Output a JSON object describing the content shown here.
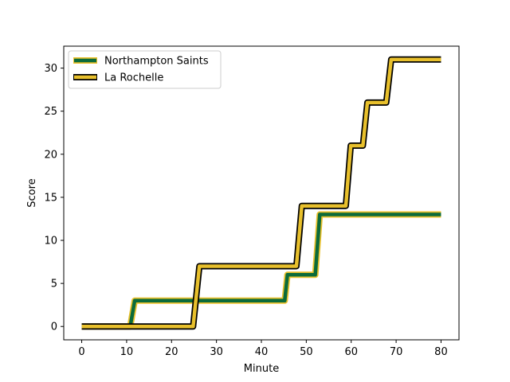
{
  "chart_data": {
    "type": "line",
    "title": "",
    "xlabel": "Minute",
    "ylabel": "Score",
    "xlim": [
      -4,
      84
    ],
    "ylim": [
      -1.55,
      32.55
    ],
    "xticks": [
      0,
      10,
      20,
      30,
      40,
      50,
      60,
      70,
      80
    ],
    "yticks": [
      0,
      5,
      10,
      15,
      20,
      25,
      30
    ],
    "grid": false,
    "legend_position": "upper-left",
    "series": [
      {
        "name": "Northampton Saints",
        "color": "#0b6b3a",
        "edge_color": "#e8c02c",
        "x": [
          0,
          10.8,
          11.8,
          45.2,
          45.8,
          52.0,
          53.0,
          80
        ],
        "y": [
          0,
          0,
          3,
          3,
          6,
          6,
          13,
          13
        ]
      },
      {
        "name": "La Rochelle",
        "color": "#e8c02c",
        "edge_color": "#000000",
        "x": [
          0,
          24.8,
          26.2,
          47.8,
          49.0,
          58.8,
          59.9,
          62.6,
          63.6,
          67.8,
          68.9,
          80
        ],
        "y": [
          0,
          0,
          7,
          7,
          14,
          14,
          21,
          21,
          26,
          26,
          31,
          31
        ]
      }
    ]
  }
}
